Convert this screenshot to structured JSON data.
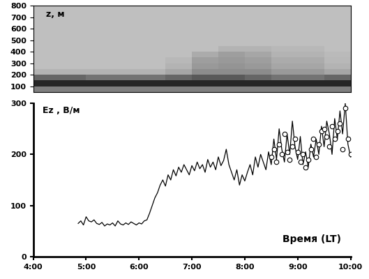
{
  "chart_data": [
    {
      "type": "heatmap",
      "y_label": "z, м",
      "x_edges": [
        4.0,
        4.5,
        5.0,
        5.5,
        6.0,
        6.5,
        7.0,
        7.5,
        8.0,
        8.5,
        9.0,
        9.5,
        10.0
      ],
      "y_edges": [
        50,
        100,
        150,
        200,
        250,
        300,
        350,
        400,
        450,
        500,
        550,
        600,
        650,
        700,
        750,
        800
      ],
      "cells": [
        [
          0.5,
          0.5,
          0.5,
          0.5,
          0.5,
          0.5,
          0.5,
          0.5,
          0.5,
          0.5,
          0.5,
          0.5
        ],
        [
          0.85,
          0.85,
          0.85,
          0.85,
          0.85,
          0.85,
          0.85,
          0.85,
          0.85,
          0.85,
          0.85,
          0.85
        ],
        [
          0.6,
          0.6,
          0.55,
          0.55,
          0.55,
          0.6,
          0.65,
          0.65,
          0.6,
          0.55,
          0.55,
          0.6
        ],
        [
          0.3,
          0.3,
          0.3,
          0.3,
          0.3,
          0.35,
          0.45,
          0.45,
          0.45,
          0.4,
          0.4,
          0.35
        ],
        [
          0.25,
          0.25,
          0.25,
          0.25,
          0.25,
          0.3,
          0.4,
          0.42,
          0.4,
          0.35,
          0.35,
          0.3
        ],
        [
          0.25,
          0.25,
          0.25,
          0.25,
          0.25,
          0.28,
          0.38,
          0.4,
          0.38,
          0.33,
          0.33,
          0.28
        ],
        [
          0.25,
          0.25,
          0.25,
          0.25,
          0.25,
          0.25,
          0.33,
          0.38,
          0.35,
          0.3,
          0.3,
          0.27
        ],
        [
          0.25,
          0.25,
          0.25,
          0.25,
          0.25,
          0.25,
          0.25,
          0.3,
          0.3,
          0.28,
          0.28,
          0.25
        ],
        [
          0.25,
          0.25,
          0.25,
          0.25,
          0.25,
          0.25,
          0.25,
          0.25,
          0.25,
          0.25,
          0.25,
          0.25
        ],
        [
          0.25,
          0.25,
          0.25,
          0.25,
          0.25,
          0.25,
          0.25,
          0.25,
          0.25,
          0.25,
          0.25,
          0.25
        ],
        [
          0.25,
          0.25,
          0.25,
          0.25,
          0.25,
          0.25,
          0.25,
          0.25,
          0.25,
          0.25,
          0.25,
          0.25
        ],
        [
          0.25,
          0.25,
          0.25,
          0.25,
          0.25,
          0.25,
          0.25,
          0.25,
          0.25,
          0.25,
          0.25,
          0.25
        ],
        [
          0.25,
          0.25,
          0.25,
          0.25,
          0.25,
          0.25,
          0.25,
          0.25,
          0.25,
          0.25,
          0.25,
          0.25
        ],
        [
          0.25,
          0.25,
          0.25,
          0.25,
          0.25,
          0.25,
          0.25,
          0.25,
          0.25,
          0.25,
          0.25,
          0.25
        ],
        [
          0.25,
          0.25,
          0.25,
          0.25,
          0.25,
          0.25,
          0.25,
          0.25,
          0.25,
          0.25,
          0.25,
          0.25
        ]
      ],
      "color_range": [
        0,
        1
      ],
      "xlim": [
        4,
        10
      ],
      "ylim": [
        50,
        800
      ],
      "yticks": [
        100,
        200,
        300,
        400,
        500,
        600,
        700,
        800
      ],
      "tick_labels": "y"
    },
    {
      "type": "line",
      "y_label": "Ez , В/м",
      "x_label": "Время (LT)",
      "xlim": [
        4,
        10
      ],
      "ylim": [
        0,
        300
      ],
      "xticks": [
        {
          "value": 4,
          "label": "4:00"
        },
        {
          "value": 5,
          "label": "5:00"
        },
        {
          "value": 6,
          "label": "6:00"
        },
        {
          "value": 7,
          "label": "7:00"
        },
        {
          "value": 8,
          "label": "8:00"
        },
        {
          "value": 9,
          "label": "9:00"
        },
        {
          "value": 10,
          "label": "10:00"
        }
      ],
      "yticks": [
        0,
        100,
        200,
        300
      ],
      "series": [
        {
          "type": "line",
          "color": "#000000",
          "line_style": "solid",
          "x": [
            4.85,
            4.9,
            4.95,
            5.0,
            5.05,
            5.1,
            5.15,
            5.2,
            5.25,
            5.3,
            5.35,
            5.4,
            5.45,
            5.5,
            5.55,
            5.6,
            5.65,
            5.7,
            5.75,
            5.8,
            5.85,
            5.9,
            5.95,
            6.0,
            6.05,
            6.1,
            6.15,
            6.2,
            6.25,
            6.3,
            6.35,
            6.4,
            6.45,
            6.5,
            6.55,
            6.6,
            6.65,
            6.7,
            6.75,
            6.8,
            6.85,
            6.9,
            6.95,
            7.0,
            7.05,
            7.1,
            7.15,
            7.2,
            7.25,
            7.3,
            7.35,
            7.4,
            7.45,
            7.5,
            7.55,
            7.6,
            7.65,
            7.7,
            7.75,
            7.8,
            7.85,
            7.9,
            7.95,
            8.0,
            8.05,
            8.1,
            8.15,
            8.2,
            8.25,
            8.3,
            8.35,
            8.4,
            8.45,
            8.5,
            8.55,
            8.6,
            8.65,
            8.7,
            8.75,
            8.8,
            8.85,
            8.9,
            8.95,
            9.0,
            9.05,
            9.1,
            9.15,
            9.2,
            9.25,
            9.3,
            9.35,
            9.4,
            9.45,
            9.5,
            9.55,
            9.6,
            9.65,
            9.7,
            9.75,
            9.8,
            9.85,
            9.9,
            9.95,
            10.0
          ],
          "values": [
            65,
            70,
            62,
            78,
            70,
            68,
            72,
            65,
            63,
            67,
            60,
            64,
            62,
            66,
            60,
            70,
            64,
            62,
            66,
            63,
            68,
            65,
            62,
            66,
            64,
            70,
            72,
            85,
            100,
            115,
            125,
            140,
            150,
            138,
            160,
            150,
            170,
            158,
            175,
            165,
            180,
            170,
            160,
            178,
            168,
            185,
            172,
            180,
            165,
            190,
            175,
            185,
            170,
            195,
            178,
            188,
            210,
            180,
            165,
            150,
            170,
            140,
            160,
            148,
            165,
            180,
            160,
            195,
            175,
            200,
            185,
            170,
            205,
            180,
            230,
            190,
            250,
            210,
            185,
            240,
            200,
            265,
            215,
            190,
            235,
            180,
            205,
            175,
            220,
            195,
            230,
            200,
            255,
            215,
            265,
            240,
            200,
            270,
            230,
            285,
            240,
            300,
            220,
            195
          ]
        },
        {
          "type": "scatter",
          "color": "#000000",
          "marker": "circle",
          "x": [
            8.5,
            8.55,
            8.6,
            8.65,
            8.7,
            8.75,
            8.8,
            8.85,
            8.9,
            8.95,
            9.0,
            9.05,
            9.1,
            9.15,
            9.2,
            9.25,
            9.3,
            9.35,
            9.4,
            9.45,
            9.5,
            9.55,
            9.6,
            9.65,
            9.7,
            9.75,
            9.8,
            9.85,
            9.9,
            9.95,
            10.0
          ],
          "values": [
            195,
            210,
            185,
            220,
            200,
            240,
            205,
            190,
            215,
            230,
            205,
            185,
            200,
            175,
            190,
            210,
            230,
            195,
            220,
            245,
            250,
            235,
            215,
            255,
            230,
            245,
            260,
            210,
            290,
            230,
            200
          ]
        }
      ]
    }
  ]
}
